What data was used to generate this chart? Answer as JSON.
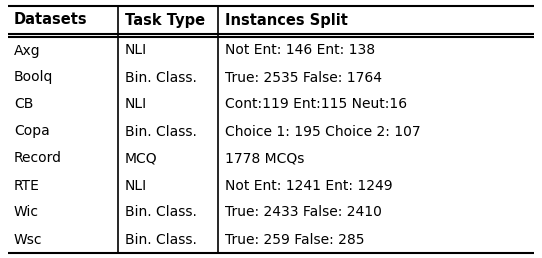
{
  "headers": [
    "Datasets",
    "Task Type",
    "Instances Split"
  ],
  "rows": [
    [
      "Axg",
      "NLI",
      "Not Ent: 146 Ent: 138"
    ],
    [
      "Boolq",
      "Bin. Class.",
      "True: 2535 False: 1764"
    ],
    [
      "CB",
      "NLI",
      "Cont:119 Ent:115 Neut:16"
    ],
    [
      "Copa",
      "Bin. Class.",
      "Choice 1: 195 Choice 2: 107"
    ],
    [
      "Record",
      "MCQ",
      "1778 MCQs"
    ],
    [
      "RTE",
      "NLI",
      "Not Ent: 1241 Ent: 1249"
    ],
    [
      "Wic",
      "Bin. Class.",
      "True: 2433 False: 2410"
    ],
    [
      "Wsc",
      "Bin. Class.",
      "True: 259 False: 285"
    ]
  ],
  "header_fontsize": 10.5,
  "row_fontsize": 10.0,
  "background_color": "#ffffff",
  "line_color": "#000000",
  "text_color": "#000000",
  "figsize": [
    5.42,
    2.58
  ],
  "dpi": 100
}
